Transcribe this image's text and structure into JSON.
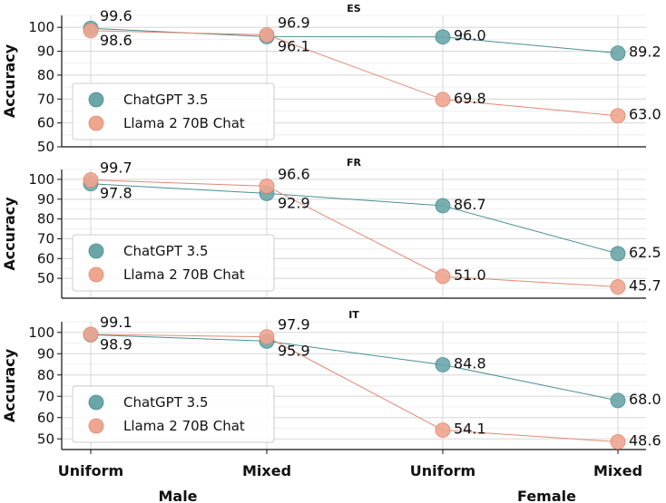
{
  "chart_data": [
    {
      "type": "line",
      "title": "ES",
      "ylabel": "Accuracy",
      "ylim": [
        50,
        105
      ],
      "yticks": [
        50,
        60,
        70,
        80,
        90,
        100
      ],
      "categories": [
        "Uniform",
        "Mixed",
        "Uniform",
        "Mixed"
      ],
      "series": [
        {
          "name": "ChatGPT 3.5",
          "values": [
            99.6,
            96.1,
            96.0,
            89.2
          ],
          "labels": [
            "99.6",
            "96.1",
            "96.0",
            "89.2"
          ]
        },
        {
          "name": "Llama 2 70B Chat",
          "values": [
            98.6,
            96.9,
            69.8,
            63.0
          ],
          "labels": [
            "98.6",
            "96.9",
            "69.8",
            "63.0"
          ]
        }
      ],
      "legend": "bottom-left",
      "grid": true
    },
    {
      "type": "line",
      "title": "FR",
      "ylabel": "Accuracy",
      "ylim": [
        40,
        105
      ],
      "yticks": [
        50,
        60,
        70,
        80,
        90,
        100
      ],
      "categories": [
        "Uniform",
        "Mixed",
        "Uniform",
        "Mixed"
      ],
      "series": [
        {
          "name": "ChatGPT 3.5",
          "values": [
            97.8,
            92.9,
            86.7,
            62.5
          ],
          "labels": [
            "97.8",
            "92.9",
            "86.7",
            "62.5"
          ]
        },
        {
          "name": "Llama 2 70B Chat",
          "values": [
            99.7,
            96.6,
            51.0,
            45.7
          ],
          "labels": [
            "99.7",
            "96.6",
            "51.0",
            "45.7"
          ]
        }
      ],
      "legend": "bottom-left",
      "grid": true
    },
    {
      "type": "line",
      "title": "IT",
      "ylabel": "Accuracy",
      "ylim": [
        45,
        105
      ],
      "yticks": [
        50,
        60,
        70,
        80,
        90,
        100
      ],
      "categories": [
        "Uniform",
        "Mixed",
        "Uniform",
        "Mixed"
      ],
      "series": [
        {
          "name": "ChatGPT 3.5",
          "values": [
            98.9,
            95.9,
            84.8,
            68.0
          ],
          "labels": [
            "98.9",
            "95.9",
            "84.8",
            "68.0"
          ]
        },
        {
          "name": "Llama 2 70B Chat",
          "values": [
            99.1,
            97.9,
            54.1,
            48.6
          ],
          "labels": [
            "99.1",
            "97.9",
            "54.1",
            "48.6"
          ]
        }
      ],
      "legend": "bottom-left",
      "grid": true
    }
  ],
  "x_axis": {
    "categories": [
      "Uniform",
      "Mixed",
      "Uniform",
      "Mixed"
    ],
    "groups": [
      {
        "label": "Male",
        "span": [
          0,
          1
        ]
      },
      {
        "label": "Female",
        "span": [
          2,
          3
        ]
      }
    ]
  },
  "colors": {
    "chatgpt": "#6aa6a8",
    "llama": "#f0a58f",
    "chatgpt_line": "#4a8f92",
    "llama_line": "#e08a72",
    "grid": "#d9d9d9"
  }
}
